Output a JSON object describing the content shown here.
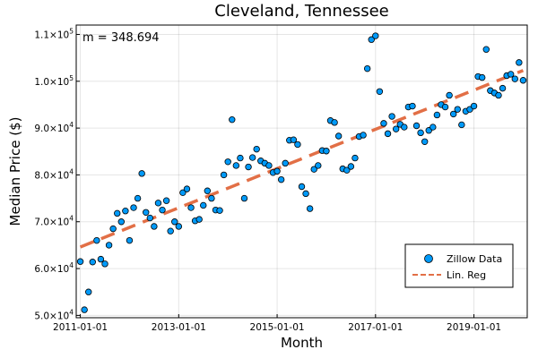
{
  "chart_data": {
    "type": "scatter",
    "title": "Cleveland, Tennessee",
    "xlabel": "Month",
    "ylabel": "Median Price ($)",
    "annotation": "m = 348.694",
    "x_ticks": [
      "2011-01-01",
      "2013-01-01",
      "2015-01-01",
      "2017-01-01",
      "2019-01-01"
    ],
    "y_ticks": [
      {
        "value": 50000,
        "mant": "5.0×10",
        "exp": "4"
      },
      {
        "value": 60000,
        "mant": "6.0×10",
        "exp": "4"
      },
      {
        "value": 70000,
        "mant": "7.0×10",
        "exp": "4"
      },
      {
        "value": 80000,
        "mant": "8.0×10",
        "exp": "4"
      },
      {
        "value": 90000,
        "mant": "9.0×10",
        "exp": "4"
      },
      {
        "value": 100000,
        "mant": "1.0×10",
        "exp": "5"
      },
      {
        "value": 110000,
        "mant": "1.1×10",
        "exp": "5"
      }
    ],
    "xlim": [
      "2010-12-01",
      "2020-02-01"
    ],
    "ylim": [
      49500,
      112000
    ],
    "grid": true,
    "legend": {
      "placement": "bottom-right"
    },
    "series": [
      {
        "name": "Zillow Data",
        "kind": "scatter",
        "color": "#009af9",
        "points": [
          {
            "x": "2011-01-01",
            "y": 61500
          },
          {
            "x": "2011-02-01",
            "y": 51200
          },
          {
            "x": "2011-03-01",
            "y": 55000
          },
          {
            "x": "2011-04-01",
            "y": 61400
          },
          {
            "x": "2011-05-01",
            "y": 66000
          },
          {
            "x": "2011-06-01",
            "y": 62000
          },
          {
            "x": "2011-07-01",
            "y": 61000
          },
          {
            "x": "2011-08-01",
            "y": 65000
          },
          {
            "x": "2011-09-01",
            "y": 68500
          },
          {
            "x": "2011-10-01",
            "y": 71800
          },
          {
            "x": "2011-11-01",
            "y": 70000
          },
          {
            "x": "2011-12-01",
            "y": 72300
          },
          {
            "x": "2012-01-01",
            "y": 66000
          },
          {
            "x": "2012-02-01",
            "y": 73000
          },
          {
            "x": "2012-03-01",
            "y": 75000
          },
          {
            "x": "2012-04-01",
            "y": 80300
          },
          {
            "x": "2012-05-01",
            "y": 72000
          },
          {
            "x": "2012-06-01",
            "y": 70800
          },
          {
            "x": "2012-07-01",
            "y": 69000
          },
          {
            "x": "2012-08-01",
            "y": 74000
          },
          {
            "x": "2012-09-01",
            "y": 72500
          },
          {
            "x": "2012-10-01",
            "y": 74500
          },
          {
            "x": "2012-11-01",
            "y": 68000
          },
          {
            "x": "2012-12-01",
            "y": 70000
          },
          {
            "x": "2013-01-01",
            "y": 69000
          },
          {
            "x": "2013-02-01",
            "y": 76200
          },
          {
            "x": "2013-03-01",
            "y": 77000
          },
          {
            "x": "2013-04-01",
            "y": 73000
          },
          {
            "x": "2013-05-01",
            "y": 70200
          },
          {
            "x": "2013-06-01",
            "y": 70500
          },
          {
            "x": "2013-07-01",
            "y": 73500
          },
          {
            "x": "2013-08-01",
            "y": 76600
          },
          {
            "x": "2013-09-01",
            "y": 75000
          },
          {
            "x": "2013-10-01",
            "y": 72500
          },
          {
            "x": "2013-11-01",
            "y": 72400
          },
          {
            "x": "2013-12-01",
            "y": 80000
          },
          {
            "x": "2014-01-01",
            "y": 82800
          },
          {
            "x": "2014-02-01",
            "y": 91800
          },
          {
            "x": "2014-03-01",
            "y": 82000
          },
          {
            "x": "2014-04-01",
            "y": 83600
          },
          {
            "x": "2014-05-01",
            "y": 75000
          },
          {
            "x": "2014-06-01",
            "y": 81700
          },
          {
            "x": "2014-07-01",
            "y": 83700
          },
          {
            "x": "2014-08-01",
            "y": 85500
          },
          {
            "x": "2014-09-01",
            "y": 83000
          },
          {
            "x": "2014-10-01",
            "y": 82500
          },
          {
            "x": "2014-11-01",
            "y": 82000
          },
          {
            "x": "2014-12-01",
            "y": 80500
          },
          {
            "x": "2015-01-01",
            "y": 80800
          },
          {
            "x": "2015-02-01",
            "y": 79000
          },
          {
            "x": "2015-03-01",
            "y": 82500
          },
          {
            "x": "2015-04-01",
            "y": 87400
          },
          {
            "x": "2015-05-01",
            "y": 87500
          },
          {
            "x": "2015-06-01",
            "y": 86500
          },
          {
            "x": "2015-07-01",
            "y": 77500
          },
          {
            "x": "2015-08-01",
            "y": 76000
          },
          {
            "x": "2015-09-01",
            "y": 72800
          },
          {
            "x": "2015-10-01",
            "y": 81200
          },
          {
            "x": "2015-11-01",
            "y": 82000
          },
          {
            "x": "2015-12-01",
            "y": 85200
          },
          {
            "x": "2016-01-01",
            "y": 85100
          },
          {
            "x": "2016-02-01",
            "y": 91600
          },
          {
            "x": "2016-03-01",
            "y": 91200
          },
          {
            "x": "2016-04-01",
            "y": 88300
          },
          {
            "x": "2016-05-01",
            "y": 81300
          },
          {
            "x": "2016-06-01",
            "y": 81000
          },
          {
            "x": "2016-07-01",
            "y": 81800
          },
          {
            "x": "2016-08-01",
            "y": 83600
          },
          {
            "x": "2016-09-01",
            "y": 88200
          },
          {
            "x": "2016-10-01",
            "y": 88500
          },
          {
            "x": "2016-11-01",
            "y": 102700
          },
          {
            "x": "2016-12-01",
            "y": 108900
          },
          {
            "x": "2017-01-01",
            "y": 109700
          },
          {
            "x": "2017-02-01",
            "y": 97800
          },
          {
            "x": "2017-03-01",
            "y": 91000
          },
          {
            "x": "2017-04-01",
            "y": 88800
          },
          {
            "x": "2017-05-01",
            "y": 92500
          },
          {
            "x": "2017-06-01",
            "y": 89800
          },
          {
            "x": "2017-07-01",
            "y": 90800
          },
          {
            "x": "2017-08-01",
            "y": 90200
          },
          {
            "x": "2017-09-01",
            "y": 94500
          },
          {
            "x": "2017-10-01",
            "y": 94700
          },
          {
            "x": "2017-11-01",
            "y": 90500
          },
          {
            "x": "2017-12-01",
            "y": 89000
          },
          {
            "x": "2018-01-01",
            "y": 87100
          },
          {
            "x": "2018-02-01",
            "y": 89500
          },
          {
            "x": "2018-03-01",
            "y": 90200
          },
          {
            "x": "2018-04-01",
            "y": 92800
          },
          {
            "x": "2018-05-01",
            "y": 95000
          },
          {
            "x": "2018-06-01",
            "y": 94500
          },
          {
            "x": "2018-07-01",
            "y": 97000
          },
          {
            "x": "2018-08-01",
            "y": 93000
          },
          {
            "x": "2018-09-01",
            "y": 94000
          },
          {
            "x": "2018-10-01",
            "y": 90700
          },
          {
            "x": "2018-11-01",
            "y": 93600
          },
          {
            "x": "2018-12-01",
            "y": 94000
          },
          {
            "x": "2019-01-01",
            "y": 94700
          },
          {
            "x": "2019-02-01",
            "y": 101000
          },
          {
            "x": "2019-03-01",
            "y": 100800
          },
          {
            "x": "2019-04-01",
            "y": 106800
          },
          {
            "x": "2019-05-01",
            "y": 98000
          },
          {
            "x": "2019-06-01",
            "y": 97500
          },
          {
            "x": "2019-07-01",
            "y": 97000
          },
          {
            "x": "2019-08-01",
            "y": 98500
          },
          {
            "x": "2019-09-01",
            "y": 101200
          },
          {
            "x": "2019-10-01",
            "y": 101500
          },
          {
            "x": "2019-11-01",
            "y": 100500
          },
          {
            "x": "2019-12-01",
            "y": 104000
          },
          {
            "x": "2020-01-01",
            "y": 100200
          }
        ]
      },
      {
        "name": "Lin. Reg",
        "kind": "line",
        "style": "dashed",
        "color": "#e26f46",
        "points": [
          {
            "x": "2011-01-01",
            "y": 64600
          },
          {
            "x": "2020-01-01",
            "y": 102300
          }
        ]
      }
    ]
  }
}
